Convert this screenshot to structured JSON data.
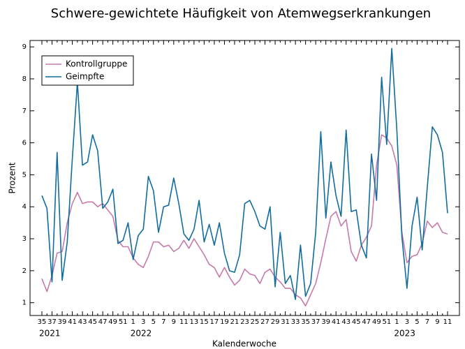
{
  "chart_data": {
    "type": "line",
    "title": "Schwere-gewichtete Häufigkeit von Atemwegserkrankungen",
    "x_label": "Kalenderwoche",
    "y_label": "Prozent",
    "annotations": [
      "2021",
      "2022",
      "2023"
    ],
    "categories": [
      "35",
      null,
      "37",
      null,
      "39",
      null,
      "41",
      null,
      "43",
      null,
      "45",
      null,
      "47",
      null,
      "49",
      null,
      "51",
      null,
      "1",
      null,
      "3",
      null,
      "5",
      null,
      "7",
      null,
      "9",
      null,
      "11",
      null,
      "13",
      null,
      "15",
      null,
      "17",
      null,
      "19",
      null,
      "21",
      null,
      "23",
      null,
      "25",
      null,
      "27",
      null,
      "29",
      null,
      "31",
      null,
      "33",
      null,
      "35",
      null,
      "37",
      null,
      "39",
      null,
      "41",
      null,
      "43",
      null,
      "45",
      null,
      "47",
      null,
      "49",
      null,
      "51",
      null,
      "1",
      null,
      "3",
      null,
      "5",
      null,
      "7",
      null,
      "9",
      null,
      "11"
    ],
    "series": [
      {
        "name": "Kontrollgruppe",
        "color": "#c77aaa",
        "values": [
          1.75,
          1.35,
          1.85,
          2.55,
          2.6,
          3.5,
          4.1,
          4.45,
          4.1,
          4.15,
          4.15,
          4.0,
          4.1,
          3.9,
          3.7,
          2.95,
          2.75,
          2.75,
          2.4,
          2.2,
          2.1,
          2.45,
          2.9,
          2.9,
          2.75,
          2.8,
          2.6,
          2.7,
          2.95,
          2.7,
          3.0,
          2.75,
          2.5,
          2.2,
          2.1,
          1.8,
          2.1,
          1.8,
          1.55,
          1.7,
          2.05,
          1.9,
          1.85,
          1.6,
          1.95,
          2.05,
          1.8,
          1.65,
          1.45,
          1.45,
          1.25,
          1.15,
          0.9,
          1.25,
          1.6,
          2.25,
          3.0,
          3.7,
          3.85,
          3.4,
          3.6,
          2.6,
          2.3,
          2.8,
          3.05,
          3.4,
          5.3,
          6.25,
          6.15,
          5.9,
          5.3,
          3.2,
          2.25,
          2.45,
          2.5,
          2.85,
          3.55,
          3.35,
          3.5,
          3.2,
          3.15
        ]
      },
      {
        "name": "Geimpfte",
        "color": "#126c9e",
        "values": [
          4.35,
          3.95,
          1.65,
          5.7,
          1.7,
          2.9,
          5.5,
          7.9,
          5.3,
          5.4,
          6.25,
          5.75,
          3.95,
          4.15,
          4.55,
          2.85,
          2.95,
          3.5,
          2.35,
          3.1,
          3.3,
          4.95,
          4.5,
          3.2,
          4.0,
          4.05,
          4.9,
          4.1,
          3.15,
          2.95,
          3.3,
          4.2,
          2.9,
          3.45,
          2.8,
          3.5,
          2.55,
          2.0,
          1.95,
          2.5,
          4.1,
          4.2,
          3.85,
          3.4,
          3.3,
          4.0,
          1.5,
          3.2,
          1.6,
          1.85,
          1.1,
          2.8,
          1.2,
          1.6,
          3.2,
          6.35,
          3.65,
          5.4,
          4.35,
          3.7,
          6.4,
          3.85,
          3.9,
          2.8,
          2.4,
          5.65,
          4.2,
          8.05,
          5.95,
          8.95,
          6.4,
          3.05,
          1.45,
          3.4,
          4.3,
          2.65,
          4.6,
          6.5,
          6.25,
          5.7,
          3.8
        ]
      }
    ],
    "ylim": [
      0.6,
      9.2
    ],
    "yticks": [
      1,
      2,
      3,
      4,
      5,
      6,
      7,
      8,
      9
    ],
    "grid": false,
    "legend": "upper left"
  }
}
